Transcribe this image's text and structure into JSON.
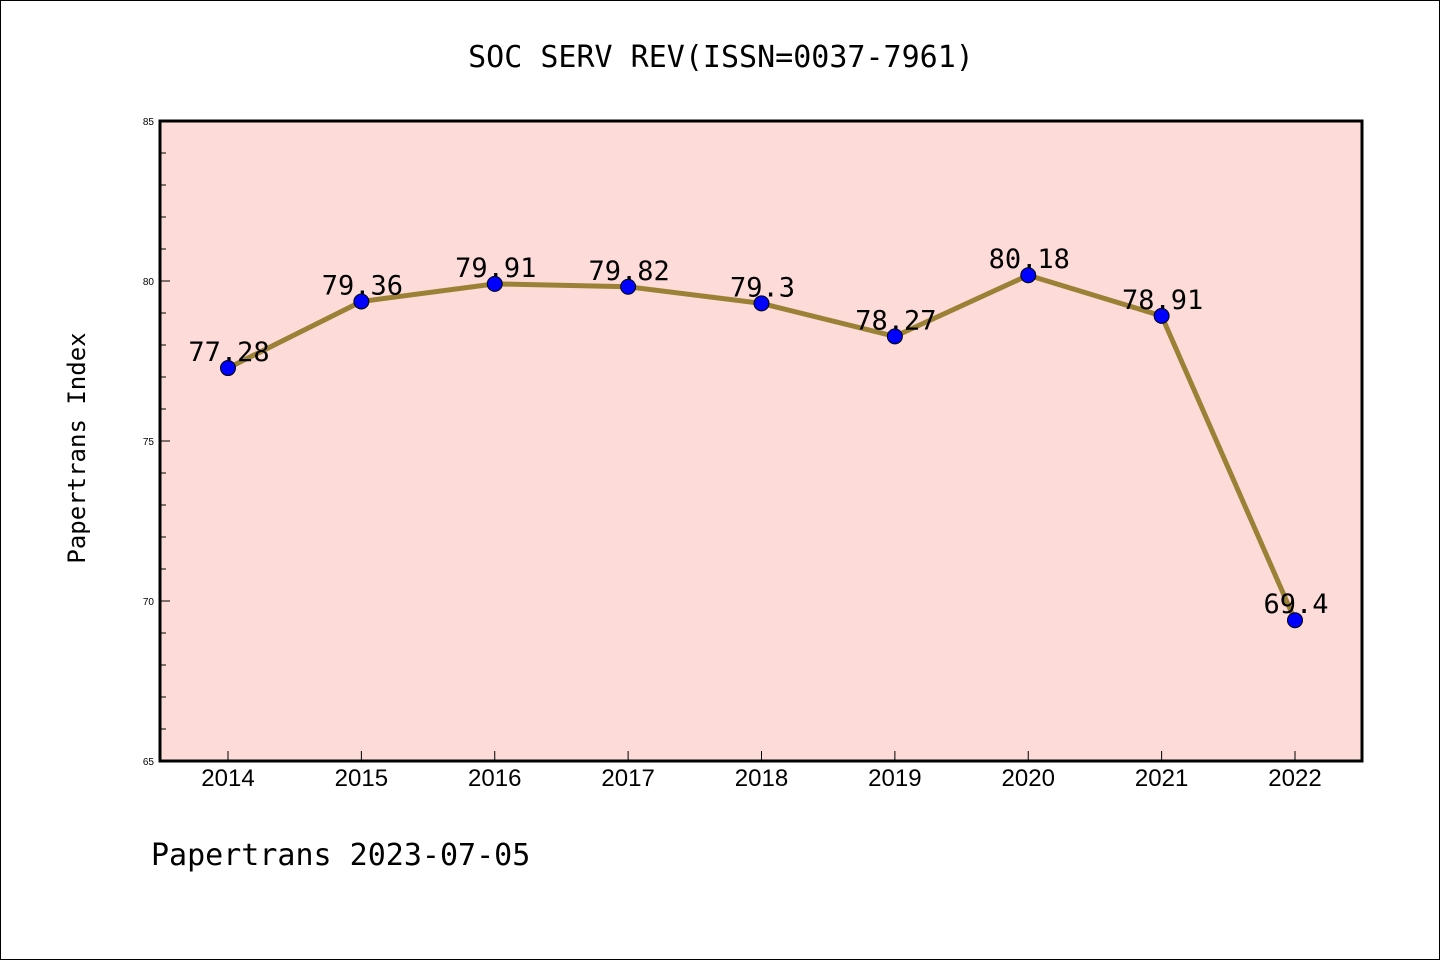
{
  "chart_data": {
    "type": "line",
    "title": "SOC SERV REV(ISSN=0037-7961)",
    "xlabel": "",
    "ylabel": "Papertrans Index",
    "footer": "Papertrans 2023-07-05",
    "categories": [
      "2014",
      "2015",
      "2016",
      "2017",
      "2018",
      "2019",
      "2020",
      "2021",
      "2022"
    ],
    "values": [
      77.28,
      79.36,
      79.91,
      79.82,
      79.3,
      78.27,
      80.18,
      78.91,
      69.4
    ],
    "data_labels": [
      "77.28",
      "79.36",
      "79.91",
      "79.82",
      "79.3",
      "78.27",
      "80.18",
      "78.91",
      "69.4"
    ],
    "ylim": [
      65,
      85
    ],
    "yticks": [
      "65",
      "70",
      "75",
      "80",
      "85"
    ],
    "grid": false,
    "colors": {
      "plot_background": "#fddbd8",
      "line": "#9b8136",
      "marker": "#0000ff"
    }
  }
}
